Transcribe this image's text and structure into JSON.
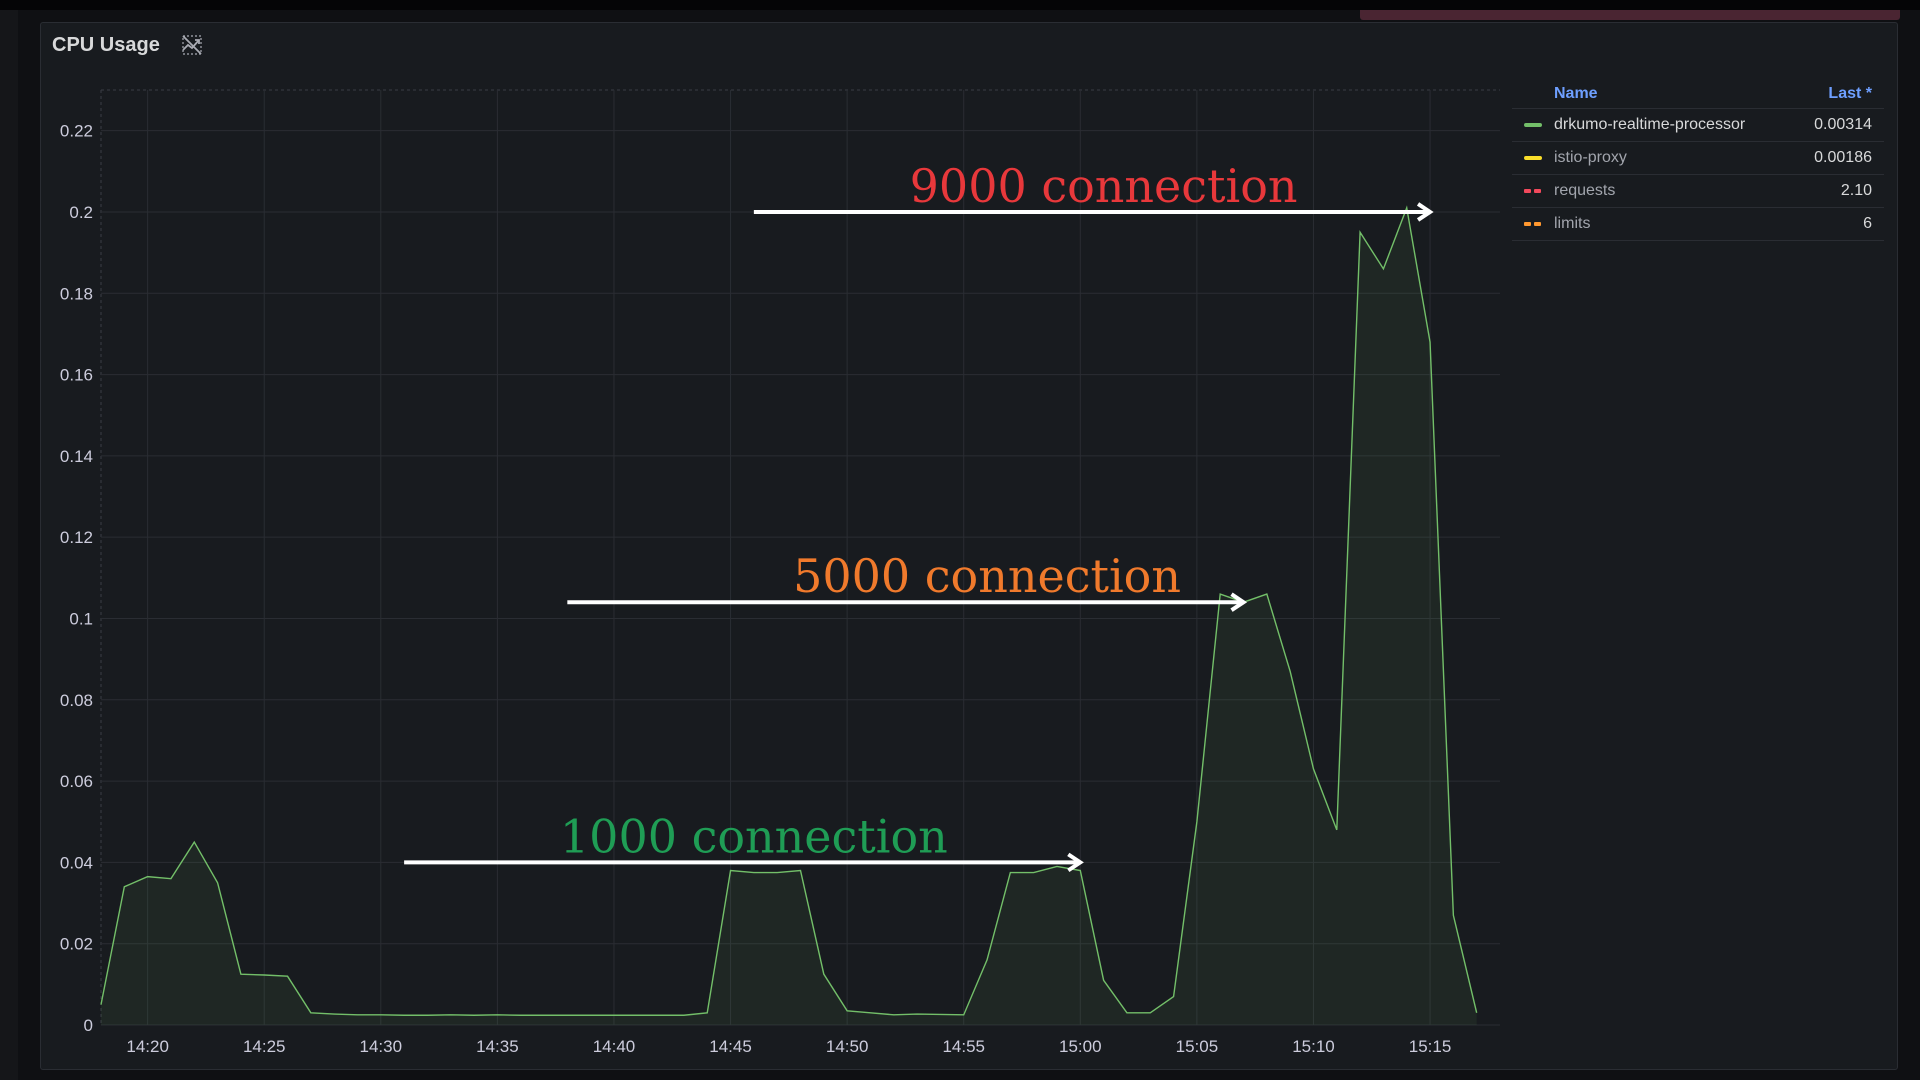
{
  "panel": {
    "title": "CPU Usage"
  },
  "legend": {
    "header_name": "Name",
    "header_value": "Last *",
    "items": [
      {
        "name": "drkumo-realtime-processor",
        "value": "0.00314",
        "color": "#73bf69",
        "style": "solid"
      },
      {
        "name": "istio-proxy",
        "value": "0.00186",
        "color": "#fade2a",
        "style": "solid"
      },
      {
        "name": "requests",
        "value": "2.10",
        "color": "#f2495c",
        "style": "dashed"
      },
      {
        "name": "limits",
        "value": "6",
        "color": "#ff9830",
        "style": "dashed"
      }
    ]
  },
  "annotations": [
    {
      "text": "9000 connection",
      "color": "#e8383b",
      "arrow_from": "14:46",
      "arrow_to": "15:15",
      "arrow_y": 0.2,
      "label_x": "15:01"
    },
    {
      "text": "5000 connection",
      "color": "#f07a2c",
      "arrow_from": "14:38",
      "arrow_to": "15:07",
      "arrow_y": 0.104,
      "label_x": "14:56"
    },
    {
      "text": "1000 connection",
      "color": "#1f9d55",
      "arrow_from": "14:31",
      "arrow_to": "15:00",
      "arrow_y": 0.04,
      "label_x": "14:46"
    }
  ],
  "chart_data": {
    "type": "area",
    "title": "CPU Usage",
    "xlabel": "",
    "ylabel": "",
    "x_ticks": [
      "14:20",
      "14:25",
      "14:30",
      "14:35",
      "14:40",
      "14:45",
      "14:50",
      "14:55",
      "15:00",
      "15:05",
      "15:10",
      "15:15"
    ],
    "y_ticks": [
      0,
      0.02,
      0.04,
      0.06,
      0.08,
      0.1,
      0.12,
      0.14,
      0.16,
      0.18,
      0.2,
      0.22
    ],
    "ylim": [
      0,
      0.23
    ],
    "xlim": [
      "14:18",
      "15:18"
    ],
    "grid": true,
    "legend_position": "right",
    "series": [
      {
        "name": "drkumo-realtime-processor",
        "color": "#73bf69",
        "points": [
          [
            "14:18",
            0.005
          ],
          [
            "14:19",
            0.034
          ],
          [
            "14:20",
            0.0365
          ],
          [
            "14:21",
            0.036
          ],
          [
            "14:22",
            0.045
          ],
          [
            "14:23",
            0.035
          ],
          [
            "14:24",
            0.0125
          ],
          [
            "14:25",
            0.0123
          ],
          [
            "14:26",
            0.012
          ],
          [
            "14:27",
            0.003
          ],
          [
            "14:28",
            0.0027
          ],
          [
            "14:29",
            0.0025
          ],
          [
            "14:30",
            0.0025
          ],
          [
            "14:31",
            0.0024
          ],
          [
            "14:32",
            0.0024
          ],
          [
            "14:33",
            0.0025
          ],
          [
            "14:34",
            0.0024
          ],
          [
            "14:35",
            0.0025
          ],
          [
            "14:36",
            0.0024
          ],
          [
            "14:37",
            0.0024
          ],
          [
            "14:38",
            0.0024
          ],
          [
            "14:39",
            0.0024
          ],
          [
            "14:40",
            0.0024
          ],
          [
            "14:41",
            0.0024
          ],
          [
            "14:42",
            0.0024
          ],
          [
            "14:43",
            0.0024
          ],
          [
            "14:44",
            0.003
          ],
          [
            "14:45",
            0.038
          ],
          [
            "14:46",
            0.0375
          ],
          [
            "14:47",
            0.0375
          ],
          [
            "14:48",
            0.038
          ],
          [
            "14:49",
            0.0125
          ],
          [
            "14:50",
            0.0035
          ],
          [
            "14:51",
            0.003
          ],
          [
            "14:52",
            0.0025
          ],
          [
            "14:53",
            0.0027
          ],
          [
            "14:54",
            0.0026
          ],
          [
            "14:55",
            0.0025
          ],
          [
            "14:56",
            0.016
          ],
          [
            "14:57",
            0.0375
          ],
          [
            "14:58",
            0.0375
          ],
          [
            "14:59",
            0.039
          ],
          [
            "15:00",
            0.038
          ],
          [
            "15:01",
            0.011
          ],
          [
            "15:02",
            0.003
          ],
          [
            "15:03",
            0.003
          ],
          [
            "15:04",
            0.007
          ],
          [
            "15:05",
            0.05
          ],
          [
            "15:06",
            0.106
          ],
          [
            "15:07",
            0.104
          ],
          [
            "15:08",
            0.106
          ],
          [
            "15:09",
            0.087
          ],
          [
            "15:10",
            0.063
          ],
          [
            "15:11",
            0.048
          ],
          [
            "15:12",
            0.195
          ],
          [
            "15:13",
            0.186
          ],
          [
            "15:14",
            0.201
          ],
          [
            "15:15",
            0.168
          ],
          [
            "15:16",
            0.027
          ],
          [
            "15:17",
            0.003
          ]
        ]
      }
    ]
  }
}
